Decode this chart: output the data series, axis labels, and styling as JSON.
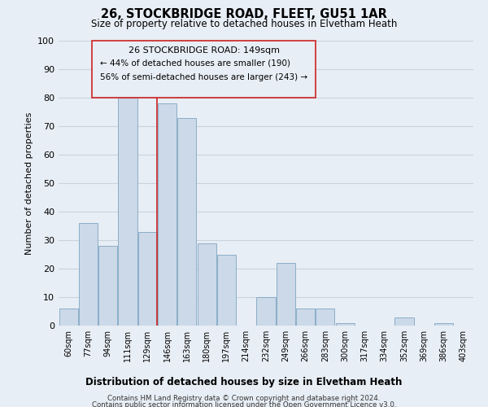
{
  "title": "26, STOCKBRIDGE ROAD, FLEET, GU51 1AR",
  "subtitle": "Size of property relative to detached houses in Elvetham Heath",
  "xlabel": "Distribution of detached houses by size in Elvetham Heath",
  "ylabel": "Number of detached properties",
  "bin_labels": [
    "60sqm",
    "77sqm",
    "94sqm",
    "111sqm",
    "129sqm",
    "146sqm",
    "163sqm",
    "180sqm",
    "197sqm",
    "214sqm",
    "232sqm",
    "249sqm",
    "266sqm",
    "283sqm",
    "300sqm",
    "317sqm",
    "334sqm",
    "352sqm",
    "369sqm",
    "386sqm",
    "403sqm"
  ],
  "bar_values": [
    6,
    36,
    28,
    80,
    33,
    78,
    73,
    29,
    25,
    0,
    10,
    22,
    6,
    6,
    1,
    0,
    0,
    3,
    0,
    1,
    0
  ],
  "bar_color": "#ccd9e8",
  "bar_edge_color": "#8aaec8",
  "property_line_index": 5,
  "property_line_label": "26 STOCKBRIDGE ROAD: 149sqm",
  "annotation_line1": "← 44% of detached houses are smaller (190)",
  "annotation_line2": "56% of semi-detached houses are larger (243) →",
  "vline_color": "#cc2222",
  "ylim": [
    0,
    100
  ],
  "yticks": [
    0,
    10,
    20,
    30,
    40,
    50,
    60,
    70,
    80,
    90,
    100
  ],
  "bg_color": "#e8eef5",
  "grid_color": "#c8d4e0",
  "footer1": "Contains HM Land Registry data © Crown copyright and database right 2024.",
  "footer2": "Contains public sector information licensed under the Open Government Licence v3.0."
}
